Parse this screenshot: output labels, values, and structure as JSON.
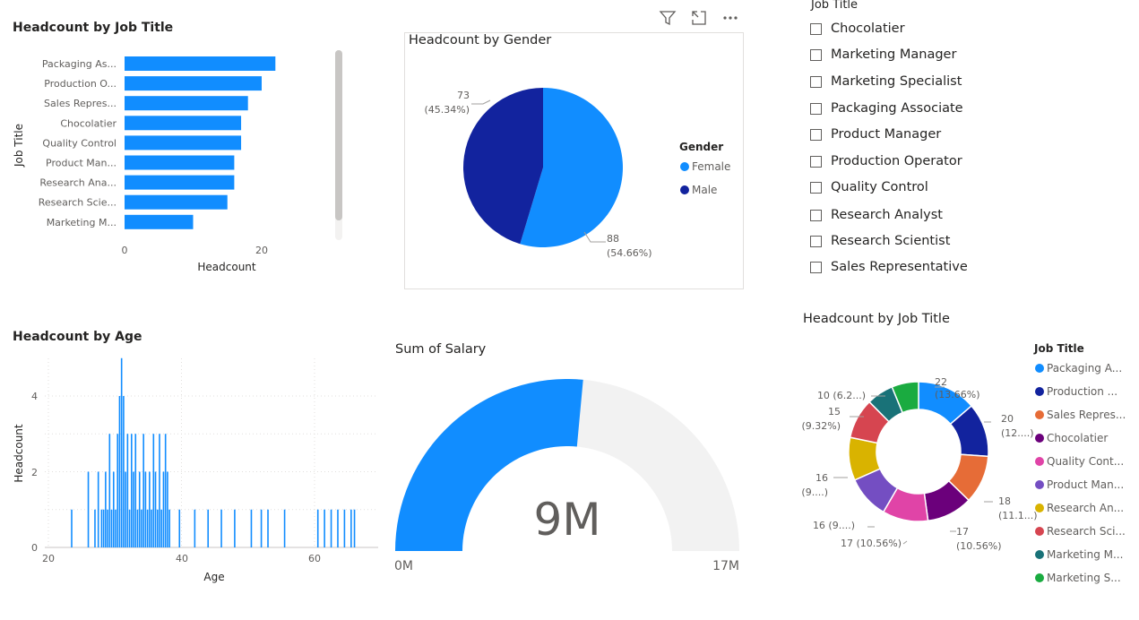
{
  "bar_visual": {
    "title": "Headcount by Job Title",
    "y_axis_title": "Job Title",
    "x_axis_title": "Headcount",
    "x_ticks": [
      "0",
      "20"
    ]
  },
  "pie_visual": {
    "title": "Headcount by Gender",
    "legend_title": "Gender",
    "legend": [
      "Female",
      "Male"
    ],
    "labels": {
      "male_value": "73",
      "male_pct": "(45.34%)",
      "female_value": "88",
      "female_pct": "(54.66%)"
    }
  },
  "toolbar": {
    "filter_icon": "filter-icon",
    "focus_icon": "focus-mode-icon",
    "more_icon": "more-options-icon"
  },
  "slicer": {
    "title": "Job Title",
    "items": [
      "Chocolatier",
      "Marketing Manager",
      "Marketing Specialist",
      "Packaging Associate",
      "Product Manager",
      "Production Operator",
      "Quality Control",
      "Research Analyst",
      "Research Scientist",
      "Sales Representative"
    ]
  },
  "hist_visual": {
    "title": "Headcount by Age",
    "y_axis_title": "Headcount",
    "x_axis_title": "Age",
    "x_ticks": [
      "20",
      "40",
      "60"
    ],
    "y_ticks": [
      "0",
      "2",
      "4"
    ]
  },
  "gauge_visual": {
    "title": "Sum of Salary",
    "value_label": "9M",
    "min_label": "0M",
    "max_label": "17M"
  },
  "donut_visual": {
    "title": "Headcount by Job Title",
    "legend_title": "Job Title",
    "legend": [
      "Packaging A...",
      "Production ...",
      "Sales Repres...",
      "Chocolatier",
      "Quality Cont...",
      "Product Man...",
      "Research An...",
      "Research Sci...",
      "Marketing M...",
      "Marketing S..."
    ],
    "labels": [
      {
        "value": "22",
        "pct": "(13.66%)"
      },
      {
        "value": "20",
        "pct": "(12....)"
      },
      {
        "value": "18",
        "pct": "(11.1...)"
      },
      {
        "value": "17",
        "pct": "(10.56%)"
      },
      {
        "value": "17 (10.56%)",
        "pct": ""
      },
      {
        "value": "16 (9....)",
        "pct": ""
      },
      {
        "value": "16",
        "pct": "(9....)"
      },
      {
        "value": "15",
        "pct": "(9.32%)"
      },
      {
        "value": "10 (6.2...)",
        "pct": ""
      }
    ]
  },
  "colors": {
    "blue": "#118DFF",
    "navy": "#12239E",
    "orange": "#E66C37",
    "purple": "#6B007B",
    "pink": "#E044A7",
    "violet": "#744EC2",
    "gold": "#D9B300",
    "red": "#D64550",
    "teal": "#197278",
    "green": "#1AAB40",
    "gauge_bg": "#F2F2F2"
  },
  "chart_data": [
    {
      "type": "bar",
      "title": "Headcount by Job Title",
      "xlabel": "Headcount",
      "ylabel": "Job Title",
      "categories": [
        "Packaging As...",
        "Production O...",
        "Sales Repres...",
        "Chocolatier",
        "Quality Control",
        "Product Man...",
        "Research Ana...",
        "Research Scie...",
        "Marketing M..."
      ],
      "values": [
        22,
        20,
        18,
        17,
        17,
        16,
        16,
        15,
        10
      ],
      "xlim": [
        0,
        30
      ]
    },
    {
      "type": "pie",
      "title": "Headcount by Gender",
      "categories": [
        "Female",
        "Male"
      ],
      "values": [
        88,
        73
      ],
      "legend": "right"
    },
    {
      "type": "bar",
      "title": "Headcount by Age",
      "xlabel": "Age",
      "ylabel": "Headcount",
      "xlim": [
        20,
        67
      ],
      "ylim": [
        0,
        5
      ],
      "x": [
        23.5,
        26,
        27,
        27.5,
        28,
        28.3,
        28.6,
        28.9,
        29.2,
        29.5,
        29.8,
        30.1,
        30.4,
        30.7,
        31,
        31.3,
        31.6,
        31.9,
        32.2,
        32.5,
        32.8,
        33.1,
        33.4,
        33.7,
        34,
        34.3,
        34.6,
        34.9,
        35.2,
        35.5,
        35.8,
        36.1,
        36.4,
        36.7,
        37,
        37.3,
        37.6,
        37.9,
        38.2,
        39.7,
        42,
        44,
        46,
        48,
        50.5,
        52,
        53,
        55.5,
        60.5,
        61.5,
        62.5,
        63.5,
        64.5,
        65.5,
        66
      ],
      "values": [
        1,
        2,
        1,
        2,
        1,
        1,
        2,
        1,
        3,
        1,
        2,
        1,
        3,
        4,
        5,
        4,
        2,
        3,
        1,
        3,
        2,
        3,
        1,
        2,
        1,
        3,
        2,
        1,
        2,
        1,
        3,
        2,
        1,
        3,
        1,
        2,
        3,
        2,
        1,
        1,
        1,
        1,
        1,
        1,
        1,
        1,
        1,
        1,
        1,
        1,
        1,
        1,
        1,
        1,
        1
      ]
    },
    {
      "type": "gauge",
      "title": "Sum of Salary",
      "value": 9,
      "min": 0,
      "max": 17,
      "unit": "M"
    },
    {
      "type": "pie",
      "title": "Headcount by Job Title",
      "categories": [
        "Packaging A...",
        "Production ...",
        "Sales Repres...",
        "Chocolatier",
        "Quality Cont...",
        "Product Man...",
        "Research An...",
        "Research Sci...",
        "Marketing M...",
        "Marketing S..."
      ],
      "values": [
        22,
        20,
        18,
        17,
        17,
        16,
        16,
        15,
        10,
        10
      ],
      "legend": "right"
    }
  ]
}
